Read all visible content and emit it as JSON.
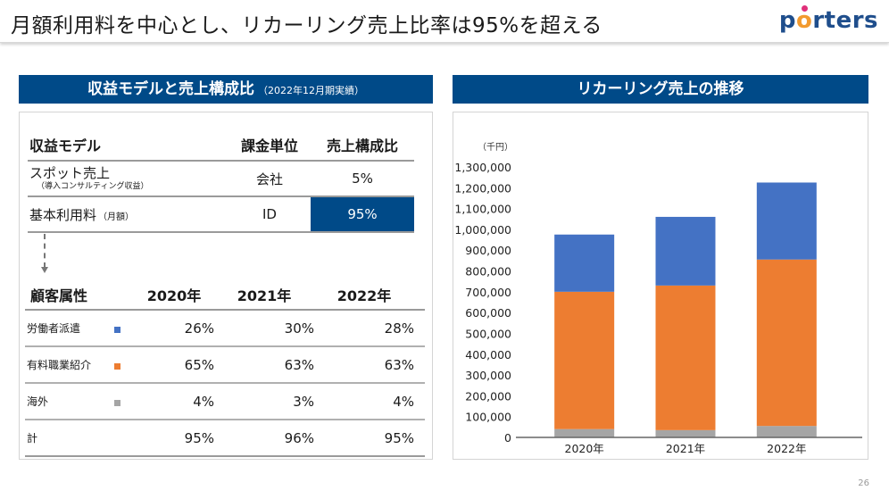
{
  "header": {
    "title": "月額利用料を中心とし、リカーリング売上比率は95%を超える",
    "logo_text": "porters"
  },
  "left_section": {
    "title": "収益モデルと売上構成比",
    "subtitle": "（2022年12月期実績）",
    "model_table": {
      "headers": [
        "収益モデル",
        "課金単位",
        "売上構成比"
      ],
      "rows": [
        {
          "name": "スポット売上",
          "sub": "（導入コンサルティング収益）",
          "unit": "会社",
          "ratio": "5%"
        },
        {
          "name": "基本利用料",
          "sub": "（月額）",
          "unit": "ID",
          "ratio": "95%"
        }
      ]
    },
    "customer_table": {
      "headers": [
        "顧客属性",
        "2020年",
        "2021年",
        "2022年"
      ],
      "rows": [
        {
          "label": "労働者派遣",
          "swatch": "#4472c4",
          "values": [
            "26%",
            "30%",
            "28%"
          ]
        },
        {
          "label": "有料職業紹介",
          "swatch": "#ed7d31",
          "values": [
            "65%",
            "63%",
            "63%"
          ]
        },
        {
          "label": "海外",
          "swatch": "#a5a5a5",
          "values": [
            "4%",
            "3%",
            "4%"
          ]
        },
        {
          "label": "計",
          "swatch": "",
          "values": [
            "95%",
            "96%",
            "95%"
          ]
        }
      ]
    }
  },
  "right_section": {
    "title": "リカーリング売上の推移"
  },
  "chart_data": {
    "type": "bar",
    "stacked": true,
    "title": "リカーリング売上の推移",
    "unit_label": "（千円）",
    "xlabel": "",
    "ylabel": "（千円）",
    "categories": [
      "2020年",
      "2021年",
      "2022年"
    ],
    "series": [
      {
        "name": "海外",
        "color": "#a5a5a5",
        "values": [
          40000,
          35000,
          55000
        ]
      },
      {
        "name": "有料職業紹介",
        "color": "#ed7d31",
        "values": [
          660000,
          695000,
          800000
        ]
      },
      {
        "name": "労働者派遣",
        "color": "#4472c4",
        "values": [
          275000,
          330000,
          370000
        ]
      }
    ],
    "ylim": [
      0,
      1300000
    ],
    "yticks": [
      0,
      100000,
      200000,
      300000,
      400000,
      500000,
      600000,
      700000,
      800000,
      900000,
      1000000,
      1100000,
      1200000,
      1300000
    ],
    "ytick_labels": [
      "0",
      "100,000",
      "200,000",
      "300,000",
      "400,000",
      "500,000",
      "600,000",
      "700,000",
      "800,000",
      "900,000",
      "1,000,000",
      "1,100,000",
      "1,200,000",
      "1,300,000"
    ],
    "grid": false,
    "legend": "none"
  },
  "footer": {
    "page_number": "26"
  }
}
